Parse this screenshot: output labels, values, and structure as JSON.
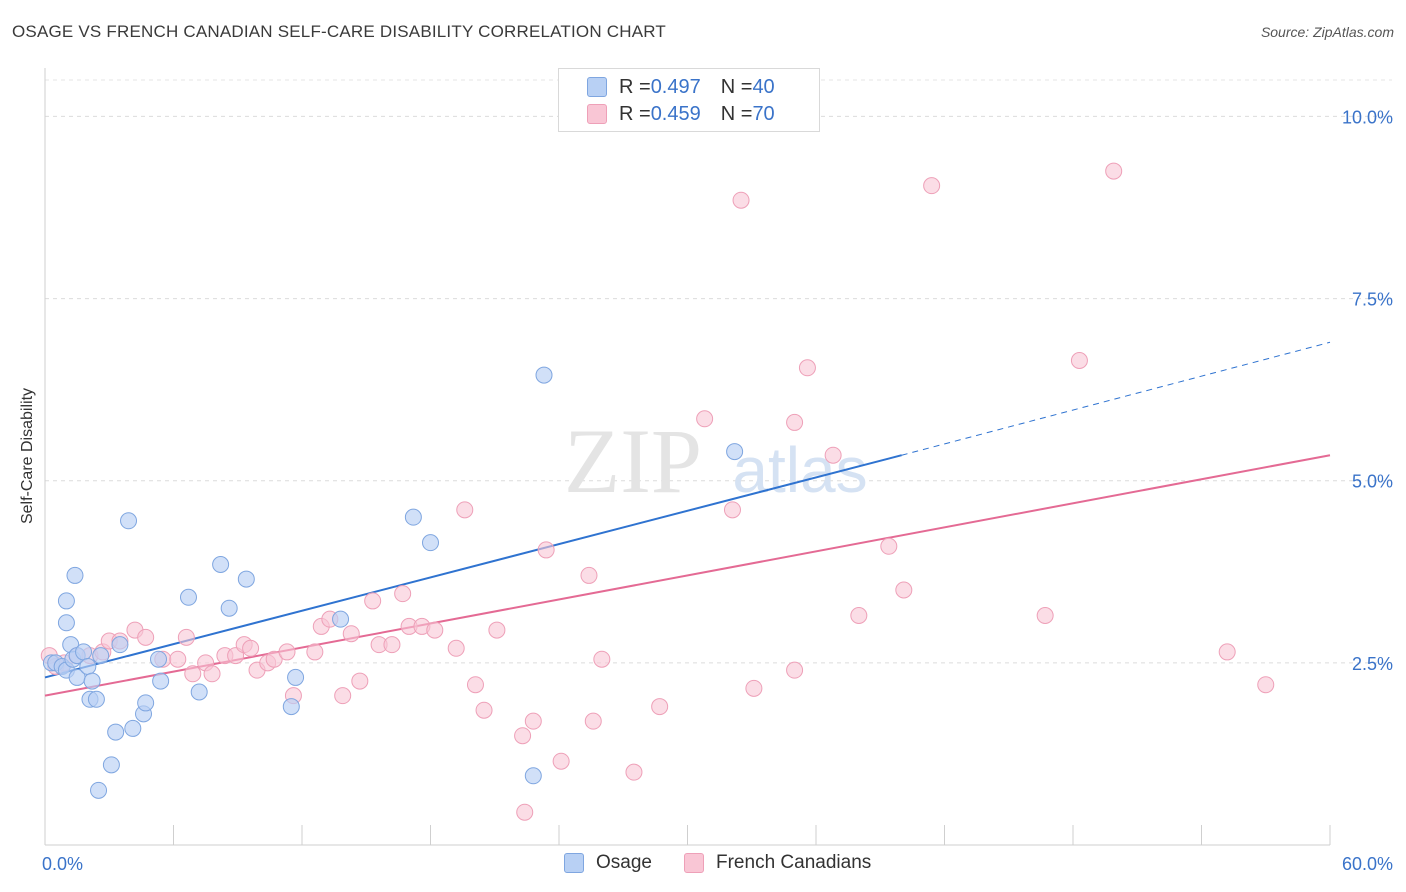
{
  "title": "OSAGE VS FRENCH CANADIAN SELF-CARE DISABILITY CORRELATION CHART",
  "source": "Source: ZipAtlas.com",
  "watermark": {
    "big": "ZIP",
    "small": "atlas"
  },
  "legend_top": [
    {
      "r_label": "R = ",
      "r_value": "0.497",
      "n_label": "N = ",
      "n_value": "40"
    },
    {
      "r_label": "R = ",
      "r_value": "0.459",
      "n_label": "N = ",
      "n_value": "70"
    }
  ],
  "legend_bottom": [
    "Osage",
    "French Canadians"
  ],
  "chart_data": {
    "type": "scatter",
    "title": "OSAGE VS FRENCH CANADIAN SELF-CARE DISABILITY CORRELATION CHART",
    "xlabel": "",
    "ylabel": "Self-Care Disability",
    "xlim": [
      0,
      60
    ],
    "ylim": [
      0,
      10.5
    ],
    "x_tick_labels": [
      "0.0%",
      "60.0%"
    ],
    "y_tick_labels": [
      "2.5%",
      "5.0%",
      "7.5%",
      "10.0%"
    ],
    "y_ticks": [
      2.5,
      5.0,
      7.5,
      10.0
    ],
    "grid": true,
    "legend_position": "top-center",
    "colors": {
      "osage_fill": "#b8d0f4",
      "osage_stroke": "#7fa6e0",
      "osage_line": "#2f73d0",
      "french_fill": "#f9c6d5",
      "french_stroke": "#eea0b8",
      "french_line": "#e46a94",
      "tick_label": "#3a73c9"
    },
    "series": [
      {
        "name": "Osage",
        "r": 0.497,
        "n": 40,
        "trend": {
          "x": [
            0,
            40
          ],
          "y": [
            2.3,
            5.35
          ],
          "dashed_to": [
            60,
            6.9
          ]
        },
        "points": [
          [
            0.3,
            2.5
          ],
          [
            0.5,
            2.5
          ],
          [
            0.8,
            2.45
          ],
          [
            1.0,
            2.4
          ],
          [
            1.0,
            3.05
          ],
          [
            1.0,
            3.35
          ],
          [
            1.2,
            2.75
          ],
          [
            1.3,
            2.55
          ],
          [
            1.4,
            3.7
          ],
          [
            1.5,
            2.3
          ],
          [
            1.5,
            2.6
          ],
          [
            1.8,
            2.65
          ],
          [
            2.0,
            2.45
          ],
          [
            2.1,
            2.0
          ],
          [
            2.2,
            2.25
          ],
          [
            2.4,
            2.0
          ],
          [
            2.5,
            0.75
          ],
          [
            2.6,
            2.6
          ],
          [
            3.1,
            1.1
          ],
          [
            3.3,
            1.55
          ],
          [
            3.5,
            2.75
          ],
          [
            3.9,
            4.45
          ],
          [
            4.1,
            1.6
          ],
          [
            4.6,
            1.8
          ],
          [
            4.7,
            1.95
          ],
          [
            5.3,
            2.55
          ],
          [
            5.4,
            2.25
          ],
          [
            6.7,
            3.4
          ],
          [
            7.2,
            2.1
          ],
          [
            8.2,
            3.85
          ],
          [
            8.6,
            3.25
          ],
          [
            9.4,
            3.65
          ],
          [
            11.5,
            1.9
          ],
          [
            11.7,
            2.3
          ],
          [
            13.8,
            3.1
          ],
          [
            17.2,
            4.5
          ],
          [
            18.0,
            4.15
          ],
          [
            22.8,
            0.95
          ],
          [
            23.3,
            6.45
          ],
          [
            32.2,
            5.4
          ]
        ]
      },
      {
        "name": "French Canadians",
        "r": 0.459,
        "n": 70,
        "trend": {
          "x": [
            0,
            60
          ],
          "y": [
            2.05,
            5.35
          ]
        },
        "points": [
          [
            0.2,
            2.6
          ],
          [
            0.5,
            2.45
          ],
          [
            0.9,
            2.5
          ],
          [
            1.5,
            2.6
          ],
          [
            2.1,
            2.6
          ],
          [
            2.7,
            2.65
          ],
          [
            3.0,
            2.8
          ],
          [
            3.5,
            2.8
          ],
          [
            4.2,
            2.95
          ],
          [
            4.7,
            2.85
          ],
          [
            5.5,
            2.55
          ],
          [
            6.2,
            2.55
          ],
          [
            6.6,
            2.85
          ],
          [
            6.9,
            2.35
          ],
          [
            7.5,
            2.5
          ],
          [
            7.8,
            2.35
          ],
          [
            8.4,
            2.6
          ],
          [
            8.9,
            2.6
          ],
          [
            9.3,
            2.75
          ],
          [
            9.9,
            2.4
          ],
          [
            10.4,
            2.5
          ],
          [
            10.7,
            2.55
          ],
          [
            11.3,
            2.65
          ],
          [
            11.6,
            2.05
          ],
          [
            12.6,
            2.65
          ],
          [
            12.9,
            3.0
          ],
          [
            13.3,
            3.1
          ],
          [
            13.9,
            2.05
          ],
          [
            14.3,
            2.9
          ],
          [
            14.7,
            2.25
          ],
          [
            15.3,
            3.35
          ],
          [
            15.6,
            2.75
          ],
          [
            16.2,
            2.75
          ],
          [
            16.7,
            3.45
          ],
          [
            17.0,
            3.0
          ],
          [
            17.6,
            3.0
          ],
          [
            18.2,
            2.95
          ],
          [
            19.2,
            2.7
          ],
          [
            19.6,
            4.6
          ],
          [
            20.1,
            2.2
          ],
          [
            20.5,
            1.85
          ],
          [
            21.1,
            2.95
          ],
          [
            22.3,
            1.5
          ],
          [
            22.8,
            1.7
          ],
          [
            23.4,
            4.05
          ],
          [
            24.1,
            1.15
          ],
          [
            25.4,
            3.7
          ],
          [
            25.6,
            1.7
          ],
          [
            26.0,
            2.55
          ],
          [
            27.5,
            1.0
          ],
          [
            28.7,
            1.9
          ],
          [
            30.8,
            5.85
          ],
          [
            32.1,
            4.6
          ],
          [
            32.5,
            8.85
          ],
          [
            33.1,
            2.15
          ],
          [
            35.0,
            2.4
          ],
          [
            35.0,
            5.8
          ],
          [
            35.6,
            6.55
          ],
          [
            36.8,
            5.35
          ],
          [
            38.0,
            3.15
          ],
          [
            39.4,
            4.1
          ],
          [
            40.1,
            3.5
          ],
          [
            41.4,
            9.05
          ],
          [
            46.7,
            3.15
          ],
          [
            48.3,
            6.65
          ],
          [
            49.9,
            9.25
          ],
          [
            55.2,
            2.65
          ],
          [
            57.0,
            2.2
          ],
          [
            22.4,
            0.45
          ],
          [
            9.6,
            2.7
          ]
        ]
      }
    ]
  }
}
